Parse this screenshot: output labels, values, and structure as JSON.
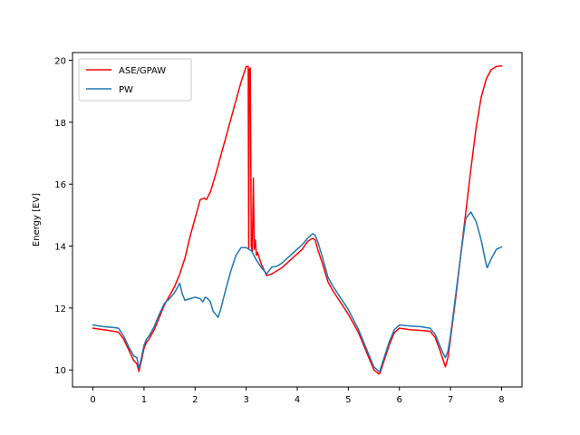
{
  "chart_data": {
    "type": "line",
    "title": "",
    "xlabel": "",
    "ylabel": "Energy [EV]",
    "xlim": [
      -0.4,
      8.4
    ],
    "ylim": [
      9.45,
      20.25
    ],
    "xticks": [
      0,
      1,
      2,
      3,
      4,
      5,
      6,
      7,
      8
    ],
    "yticks": [
      10,
      12,
      14,
      16,
      18,
      20
    ],
    "grid": false,
    "legend_position": "upper-left",
    "series": [
      {
        "name": "ASE/GPAW",
        "color": "#ff0000",
        "x": [
          0,
          0.2,
          0.4,
          0.5,
          0.6,
          0.7,
          0.8,
          0.86,
          0.9,
          0.95,
          1.0,
          1.05,
          1.1,
          1.2,
          1.3,
          1.4,
          1.5,
          1.6,
          1.7,
          1.8,
          1.9,
          2.0,
          2.1,
          2.18,
          2.22,
          2.3,
          2.4,
          2.5,
          2.6,
          2.7,
          2.8,
          2.9,
          3.0,
          3.04,
          3.05,
          3.06,
          3.08,
          3.1,
          3.12,
          3.14,
          3.16,
          3.18,
          3.2,
          3.22,
          3.3,
          3.4,
          3.5,
          3.6,
          3.7,
          3.8,
          3.9,
          4.0,
          4.1,
          4.2,
          4.3,
          4.35,
          4.4,
          4.5,
          4.6,
          4.7,
          4.8,
          5.0,
          5.2,
          5.4,
          5.5,
          5.6,
          5.62,
          5.7,
          5.8,
          5.9,
          6.0,
          6.2,
          6.4,
          6.6,
          6.7,
          6.8,
          6.85,
          6.9,
          6.95,
          7.0,
          7.1,
          7.2,
          7.3,
          7.4,
          7.5,
          7.6,
          7.7,
          7.8,
          7.9,
          8.0
        ],
        "y": [
          11.35,
          11.3,
          11.25,
          11.22,
          11.0,
          10.65,
          10.3,
          10.2,
          9.95,
          10.3,
          10.7,
          10.9,
          11.0,
          11.3,
          11.7,
          12.1,
          12.4,
          12.7,
          13.1,
          13.6,
          14.3,
          14.9,
          15.5,
          15.55,
          15.5,
          15.75,
          16.3,
          16.9,
          17.5,
          18.1,
          18.7,
          19.3,
          19.8,
          19.8,
          13.9,
          19.7,
          19.75,
          14.0,
          13.8,
          16.2,
          13.9,
          14.2,
          13.7,
          13.8,
          13.4,
          13.05,
          13.1,
          13.2,
          13.3,
          13.45,
          13.6,
          13.75,
          13.9,
          14.15,
          14.25,
          14.2,
          13.9,
          13.4,
          12.85,
          12.55,
          12.3,
          11.8,
          11.2,
          10.4,
          10.0,
          9.87,
          9.9,
          10.3,
          10.8,
          11.2,
          11.35,
          11.3,
          11.28,
          11.25,
          11.05,
          10.6,
          10.35,
          10.1,
          10.4,
          11.0,
          12.3,
          13.7,
          15.1,
          16.5,
          17.8,
          18.8,
          19.4,
          19.7,
          19.8,
          19.82
        ]
      },
      {
        "name": "PW",
        "color": "#1f77b4",
        "x": [
          0,
          0.2,
          0.4,
          0.5,
          0.6,
          0.7,
          0.8,
          0.86,
          0.9,
          0.95,
          1.0,
          1.05,
          1.1,
          1.2,
          1.3,
          1.4,
          1.5,
          1.6,
          1.7,
          1.75,
          1.8,
          1.9,
          2.0,
          2.1,
          2.15,
          2.2,
          2.25,
          2.3,
          2.35,
          2.4,
          2.45,
          2.5,
          2.6,
          2.7,
          2.8,
          2.9,
          3.0,
          3.1,
          3.2,
          3.3,
          3.4,
          3.5,
          3.6,
          3.7,
          3.8,
          3.9,
          4.0,
          4.1,
          4.2,
          4.3,
          4.35,
          4.4,
          4.5,
          4.6,
          4.7,
          4.8,
          5.0,
          5.2,
          5.4,
          5.5,
          5.6,
          5.62,
          5.7,
          5.8,
          5.9,
          6.0,
          6.2,
          6.4,
          6.6,
          6.7,
          6.8,
          6.85,
          6.9,
          6.95,
          7.0,
          7.1,
          7.2,
          7.3,
          7.4,
          7.5,
          7.6,
          7.7,
          7.72,
          7.8,
          7.9,
          8.0
        ],
        "y": [
          11.45,
          11.4,
          11.37,
          11.35,
          11.1,
          10.75,
          10.45,
          10.4,
          10.05,
          10.4,
          10.8,
          11.0,
          11.1,
          11.4,
          11.8,
          12.15,
          12.3,
          12.5,
          12.8,
          12.45,
          12.25,
          12.3,
          12.35,
          12.3,
          12.2,
          12.35,
          12.3,
          12.2,
          11.9,
          11.8,
          11.7,
          11.95,
          12.6,
          13.2,
          13.7,
          13.95,
          13.95,
          13.85,
          13.55,
          13.3,
          13.1,
          13.32,
          13.35,
          13.45,
          13.6,
          13.75,
          13.9,
          14.05,
          14.25,
          14.4,
          14.35,
          14.15,
          13.6,
          13.0,
          12.7,
          12.45,
          11.95,
          11.3,
          10.5,
          10.1,
          9.95,
          9.98,
          10.4,
          10.9,
          11.3,
          11.45,
          11.42,
          11.4,
          11.35,
          11.15,
          10.75,
          10.55,
          10.4,
          10.6,
          11.1,
          12.4,
          13.7,
          14.9,
          15.1,
          14.8,
          14.2,
          13.4,
          13.3,
          13.6,
          13.9,
          13.97
        ]
      }
    ]
  }
}
